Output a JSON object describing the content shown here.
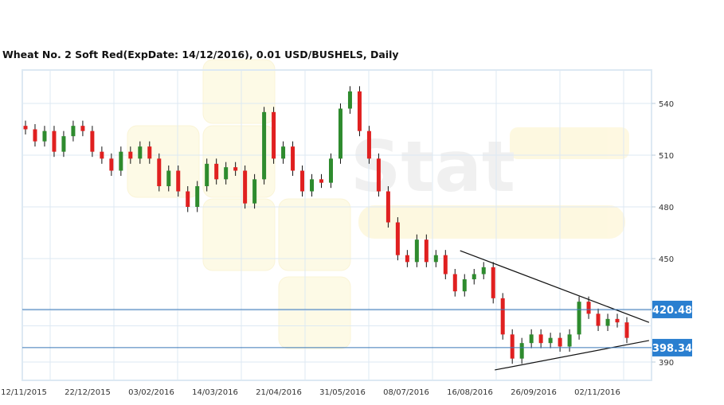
{
  "chart_data": {
    "type": "candlestick",
    "title": "Wheat  No. 2 Soft Red(ExpDate: 14/12/2016), 0.01 USD/BUSHELS, Daily",
    "x_ticks": [
      "12/11/2015",
      "22/12/2015",
      "03/02/2016",
      "14/03/2016",
      "21/04/2016",
      "31/05/2016",
      "08/07/2016",
      "16/08/2016",
      "26/09/2016",
      "02/11/2016"
    ],
    "y_ticks": [
      390,
      450,
      480,
      510,
      540
    ],
    "ylim": [
      383,
      552
    ],
    "grid": true,
    "colors": {
      "up": "#2e8b2e",
      "down": "#e02020",
      "wick": "#111111",
      "grid": "#dde9f3",
      "level": "#3a78b8",
      "badge": "#2a7fd0"
    },
    "closes": [
      525,
      518,
      524,
      512,
      521,
      527,
      524,
      512,
      508,
      501,
      512,
      508,
      515,
      508,
      492,
      501,
      489,
      480,
      492,
      505,
      496,
      503,
      501,
      482,
      496,
      535,
      508,
      515,
      501,
      489,
      496,
      494,
      508,
      537,
      547,
      524,
      508,
      489,
      471,
      452,
      448,
      461,
      448,
      452,
      441,
      431,
      438,
      441,
      445,
      427,
      406,
      392,
      401,
      406,
      401,
      404,
      399,
      406,
      425,
      418,
      411,
      415,
      413,
      404
    ],
    "levels": [
      {
        "value": 420.48,
        "label": "420.48"
      },
      {
        "value": 398.34,
        "label": "398.34"
      }
    ],
    "trendlines": [
      {
        "name": "upper",
        "from": {
          "date": "10/08/2016",
          "price": 454.6
        },
        "to": {
          "date": "02/12/2016",
          "price": 413
        }
      },
      {
        "name": "lower",
        "from": {
          "date": "01/09/2016",
          "price": 385.4
        },
        "to": {
          "date": "02/12/2016",
          "price": 402.5
        }
      }
    ],
    "watermark": "Stat"
  }
}
